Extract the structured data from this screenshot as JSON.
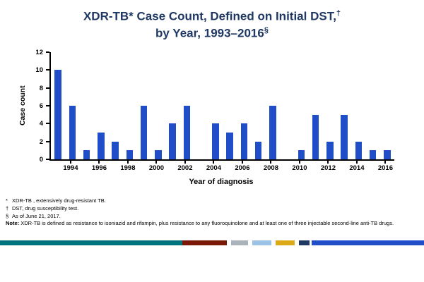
{
  "title": {
    "line1_main": "XDR-TB* Case Count, Defined on Initial DST,",
    "line1_sup": "†",
    "line2_main": "by Year, 1993–2016",
    "line2_sup": "§"
  },
  "chart_data": {
    "type": "bar",
    "title": "XDR-TB Case Count, Defined on Initial DST, by Year, 1993-2016",
    "x": [
      1993,
      1994,
      1995,
      1996,
      1997,
      1998,
      1999,
      2000,
      2001,
      2002,
      2003,
      2004,
      2005,
      2006,
      2007,
      2008,
      2009,
      2010,
      2011,
      2012,
      2013,
      2014,
      2015,
      2016
    ],
    "values": [
      10,
      6,
      1,
      3,
      2,
      1,
      6,
      1,
      4,
      6,
      0,
      4,
      3,
      4,
      2,
      6,
      0,
      1,
      5,
      2,
      5,
      2,
      1,
      1
    ],
    "xlabel": "Year of diagnosis",
    "ylabel": "Case count",
    "ylim": [
      0,
      12
    ],
    "yticks": [
      0,
      2,
      4,
      6,
      8,
      10,
      12
    ],
    "xticks": [
      1994,
      1996,
      1998,
      2000,
      2002,
      2004,
      2006,
      2008,
      2010,
      2012,
      2014,
      2016
    ],
    "bar_color": "#1F4EC8",
    "grid": false,
    "legend": "none"
  },
  "footnotes": [
    {
      "marker": "*",
      "text": "XDR-TB , extensively drug-resistant TB."
    },
    {
      "marker": "†",
      "text": "DST, drug susceptibility test."
    },
    {
      "marker": "§",
      "text": "As of June 21, 2017."
    }
  ],
  "note": {
    "label": "Note:",
    "text": " XDR-TB is defined as resistance to isoniazid and rifampin, plus resistance to any fluoroquinolone and at least one of three injectable second-line anti-TB drugs."
  },
  "stripe": {
    "segments": [
      {
        "name": "teal",
        "color": "#00747C",
        "width": 43
      },
      {
        "name": "maroon",
        "color": "#7A1705",
        "width": 10.5
      },
      {
        "name": "gap1",
        "color": "#FFFFFF",
        "width": 1
      },
      {
        "name": "silver",
        "color": "#AAB3BA",
        "width": 4
      },
      {
        "name": "gap2",
        "color": "#FFFFFF",
        "width": 1
      },
      {
        "name": "light-blue",
        "color": "#9CC3E5",
        "width": 4.5
      },
      {
        "name": "gap3",
        "color": "#FFFFFF",
        "width": 1
      },
      {
        "name": "gold",
        "color": "#DCA918",
        "width": 4.5
      },
      {
        "name": "gap4",
        "color": "#FFFFFF",
        "width": 1
      },
      {
        "name": "navy",
        "color": "#1F3864",
        "width": 2.5
      },
      {
        "name": "gap5",
        "color": "#FFFFFF",
        "width": 0.5
      },
      {
        "name": "royal-blue",
        "color": "#1F4EC8",
        "width": 26.5
      }
    ]
  }
}
